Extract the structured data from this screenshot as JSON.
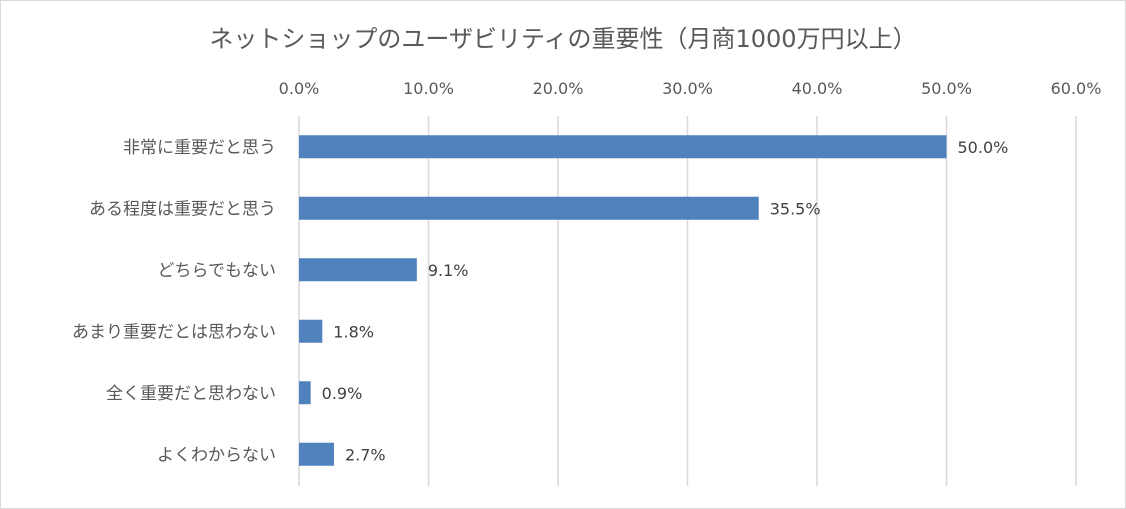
{
  "chart_data": {
    "type": "bar",
    "orientation": "horizontal",
    "title": "ネットショップのユーザビリティの重要性（月商1000万円以上）",
    "categories": [
      "非常に重要だと思う",
      "ある程度は重要だと思う",
      "どちらでもない",
      "あまり重要だとは思わない",
      "全く重要だと思わない",
      "よくわからない"
    ],
    "values": [
      50.0,
      35.5,
      9.1,
      1.8,
      0.9,
      2.7
    ],
    "data_labels": [
      "50.0%",
      "35.5%",
      "9.1%",
      "1.8%",
      "0.9%",
      "2.7%"
    ],
    "xlim": [
      0,
      60
    ],
    "x_ticks": [
      "0.0%",
      "10.0%",
      "20.0%",
      "30.0%",
      "40.0%",
      "50.0%",
      "60.0%"
    ],
    "x_axis_position": "top",
    "grid": true,
    "legend": "none",
    "bar_color": "#4f81bd",
    "grid_color": "#d9d9d9"
  }
}
